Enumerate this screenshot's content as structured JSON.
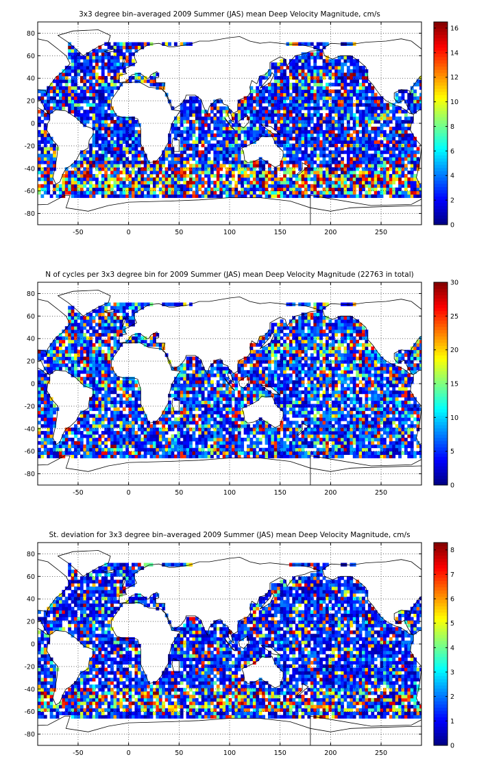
{
  "colormap": "jet",
  "colors": {
    "background": "#ffffff",
    "coastline": "#000000",
    "grid": "#000000",
    "axes": "#000000"
  },
  "chart_data": [
    {
      "type": "heatmap",
      "title": "3x3 degree bin–averaged 2009 Summer (JAS) mean Deep Velocity Magnitude, cm/s",
      "xlabel": "",
      "ylabel": "",
      "xlim": [
        -90,
        290
      ],
      "ylim": [
        -90,
        90
      ],
      "xticks": [
        -50,
        0,
        50,
        100,
        150,
        200,
        250
      ],
      "yticks": [
        -80,
        -60,
        -40,
        -20,
        0,
        20,
        40,
        60,
        80
      ],
      "bin_size_deg": 3,
      "colorbar": {
        "min": 0,
        "max": 16.5,
        "ticks": [
          0,
          2,
          4,
          6,
          8,
          10,
          12,
          14,
          16
        ]
      },
      "grid": true,
      "pattern": {
        "base": [
          0.3,
          4.5
        ],
        "hot_chance": 0.2,
        "hot": [
          6,
          16.5
        ],
        "bands": [
          [
            -62,
            -36,
            0.6
          ],
          [
            30,
            45,
            0.4
          ]
        ]
      }
    },
    {
      "type": "heatmap",
      "title": "N of cycles per 3x3 degree bin for 2009 Summer (JAS) mean Deep Velocity Magnitude (22763 in total)",
      "xlabel": "",
      "ylabel": "",
      "xlim": [
        -90,
        290
      ],
      "ylim": [
        -90,
        90
      ],
      "xticks": [
        -50,
        0,
        50,
        100,
        150,
        200,
        250
      ],
      "yticks": [
        -80,
        -60,
        -40,
        -20,
        0,
        20,
        40,
        60,
        80
      ],
      "bin_size_deg": 3,
      "colorbar": {
        "min": 0,
        "max": 30,
        "ticks": [
          0,
          5,
          10,
          15,
          20,
          25,
          30
        ]
      },
      "grid": true,
      "pattern": {
        "base": [
          1,
          9
        ],
        "hot_chance": 0.25,
        "hot": [
          10,
          30
        ],
        "bands": [
          [
            15,
            40,
            0.35
          ]
        ]
      }
    },
    {
      "type": "heatmap",
      "title": "St. deviation for 3x3 degree bin–averaged 2009 Summer (JAS) mean Deep Velocity Magnitude, cm/s",
      "xlabel": "",
      "ylabel": "",
      "xlim": [
        -90,
        290
      ],
      "ylim": [
        -90,
        90
      ],
      "xticks": [
        -50,
        0,
        50,
        100,
        150,
        200,
        250
      ],
      "yticks": [
        -80,
        -60,
        -40,
        -20,
        0,
        20,
        40,
        60,
        80
      ],
      "bin_size_deg": 3,
      "colorbar": {
        "min": 0,
        "max": 8.3,
        "ticks": [
          0,
          1,
          2,
          3,
          4,
          5,
          6,
          7,
          8
        ]
      },
      "grid": true,
      "pattern": {
        "base": [
          0.2,
          2.2
        ],
        "hot_chance": 0.18,
        "hot": [
          3,
          8.3
        ],
        "bands": [
          [
            -60,
            -38,
            0.55
          ]
        ]
      }
    }
  ]
}
